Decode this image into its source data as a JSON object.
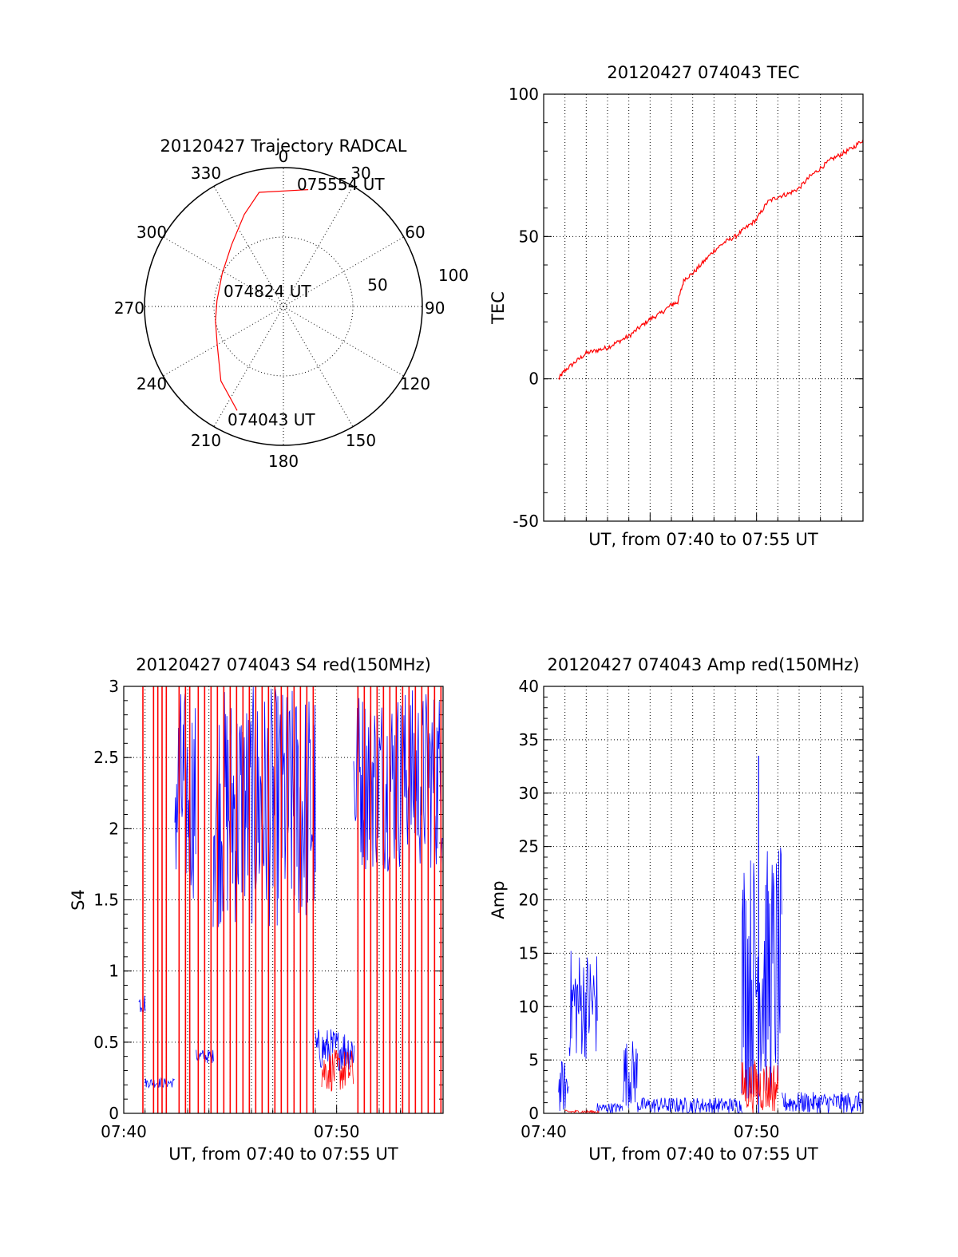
{
  "chart_data": [
    {
      "type": "polar",
      "title": "20120427 Trajectory RADCAL",
      "angle_labels": [
        "0",
        "30",
        "60",
        "90",
        "120",
        "150",
        "180",
        "210",
        "240",
        "270",
        "300",
        "330"
      ],
      "radial_labels": [
        "50",
        "100"
      ],
      "rlim": [
        0,
        100
      ],
      "grid": true,
      "trajectory": {
        "color": "#ff0000",
        "points": [
          {
            "az": 204,
            "r": 82
          },
          {
            "az": 220,
            "r": 70
          },
          {
            "az": 240,
            "r": 55
          },
          {
            "az": 258,
            "r": 50
          },
          {
            "az": 275,
            "r": 48
          },
          {
            "az": 298,
            "r": 50
          },
          {
            "az": 320,
            "r": 58
          },
          {
            "az": 337,
            "r": 72
          },
          {
            "az": 348,
            "r": 84
          },
          {
            "az": 12,
            "r": 86
          }
        ]
      },
      "annotations": [
        {
          "text": "075554 UT",
          "az": 14,
          "r": 90
        },
        {
          "text": "074824 UT",
          "az": 280,
          "r": 10
        },
        {
          "text": "074043 UT",
          "az": 200,
          "r": 84
        }
      ]
    },
    {
      "type": "line",
      "title": "20120427 074043 TEC",
      "xlabel": "UT, from 07:40 to 07:55 UT",
      "ylabel": "TEC",
      "xlim": [
        0,
        15
      ],
      "ylim": [
        -50,
        100
      ],
      "yticks": [
        "-50",
        "0",
        "50",
        "100"
      ],
      "xticks": [],
      "grid": true,
      "series": [
        {
          "color": "#ff0000",
          "x": [
            0.7,
            1.0,
            1.5,
            2.0,
            2.5,
            3.0,
            3.5,
            4.0,
            4.5,
            5.0,
            5.5,
            6.0,
            6.3,
            6.6,
            7.0,
            7.5,
            8.0,
            8.5,
            9.0,
            9.5,
            10.0,
            10.5,
            11.0,
            11.5,
            12.0,
            12.5,
            13.0,
            13.5,
            14.0,
            14.5,
            15.0
          ],
          "y": [
            0,
            3,
            6,
            9,
            10,
            11,
            13,
            15,
            18,
            21,
            23,
            26,
            27,
            35,
            37,
            41,
            45,
            48,
            50,
            53,
            56,
            62,
            64,
            65,
            67,
            71,
            74,
            77,
            79,
            81,
            84
          ]
        }
      ]
    },
    {
      "type": "line",
      "title": "20120427 074043 S4 red(150MHz)",
      "xlabel": "UT, from 07:40 to 07:55 UT",
      "ylabel": "S4",
      "xlim": [
        0,
        15
      ],
      "ylim": [
        0,
        3
      ],
      "yticks": [
        "0",
        "0.5",
        "1",
        "1.5",
        "2",
        "2.5",
        "3"
      ],
      "xticks": [
        {
          "value": 0,
          "label": "07:40"
        },
        {
          "value": 10,
          "label": "07:50"
        }
      ],
      "grid": true,
      "series": [
        {
          "color": "#0000ff",
          "bands": [
            {
              "x0": 0.7,
              "x1": 1.0,
              "low": 0.7,
              "high": 0.85
            },
            {
              "x0": 1.0,
              "x1": 2.4,
              "low": 0.18,
              "high": 0.25
            },
            {
              "x0": 2.4,
              "x1": 3.4,
              "low": 1.5,
              "high": 3.0
            },
            {
              "x0": 3.4,
              "x1": 4.2,
              "low": 0.35,
              "high": 0.45
            },
            {
              "x0": 4.2,
              "x1": 9.0,
              "low": 1.3,
              "high": 3.0
            },
            {
              "x0": 9.0,
              "x1": 10.8,
              "low": 0.3,
              "high": 0.6
            },
            {
              "x0": 10.8,
              "x1": 15.0,
              "low": 1.7,
              "high": 3.0
            }
          ]
        },
        {
          "color": "#ff0000",
          "spikes": [
            0.9,
            1.4,
            1.6,
            1.8,
            2.0,
            2.6,
            2.9,
            3.1,
            3.5,
            3.8,
            4.1,
            4.4,
            4.7,
            5.0,
            5.3,
            5.6,
            5.9,
            6.2,
            6.5,
            6.8,
            7.1,
            7.4,
            7.7,
            8.0,
            8.3,
            8.6,
            8.9,
            11.0,
            11.3,
            11.6,
            11.9,
            12.2,
            12.5,
            12.8,
            13.1,
            13.4,
            13.7,
            14.0,
            14.3,
            14.6,
            14.9
          ],
          "bands": [
            {
              "x0": 9.3,
              "x1": 10.8,
              "low": 0.15,
              "high": 0.45
            }
          ]
        }
      ]
    },
    {
      "type": "line",
      "title": "20120427 074043 Amp red(150MHz)",
      "xlabel": "UT, from 07:40 to 07:55 UT",
      "ylabel": "Amp",
      "xlim": [
        0,
        15
      ],
      "ylim": [
        0,
        40
      ],
      "yticks": [
        "0",
        "5",
        "10",
        "15",
        "20",
        "25",
        "30",
        "35",
        "40"
      ],
      "xticks": [
        {
          "value": 0,
          "label": "07:40"
        },
        {
          "value": 10,
          "label": "07:50"
        }
      ],
      "grid": true,
      "series": [
        {
          "color": "#0000ff",
          "bands": [
            {
              "x0": 0.7,
              "x1": 1.2,
              "low": 0,
              "high": 5
            },
            {
              "x0": 1.2,
              "x1": 2.5,
              "low": 5,
              "high": 15.5
            },
            {
              "x0": 2.5,
              "x1": 3.7,
              "low": 0,
              "high": 1
            },
            {
              "x0": 3.7,
              "x1": 4.4,
              "low": 0.5,
              "high": 7
            },
            {
              "x0": 4.4,
              "x1": 9.3,
              "low": 0,
              "high": 1.5
            },
            {
              "x0": 9.3,
              "x1": 11.2,
              "low": 1,
              "high": 25
            },
            {
              "x0": 11.2,
              "x1": 15.0,
              "low": 0,
              "high": 2
            }
          ],
          "peak": {
            "x": 10.1,
            "y": 33.5
          }
        },
        {
          "color": "#ff0000",
          "bands": [
            {
              "x0": 1.0,
              "x1": 2.6,
              "low": 0,
              "high": 0.3
            },
            {
              "x0": 9.3,
              "x1": 11.0,
              "low": 0,
              "high": 5
            }
          ]
        }
      ]
    }
  ]
}
